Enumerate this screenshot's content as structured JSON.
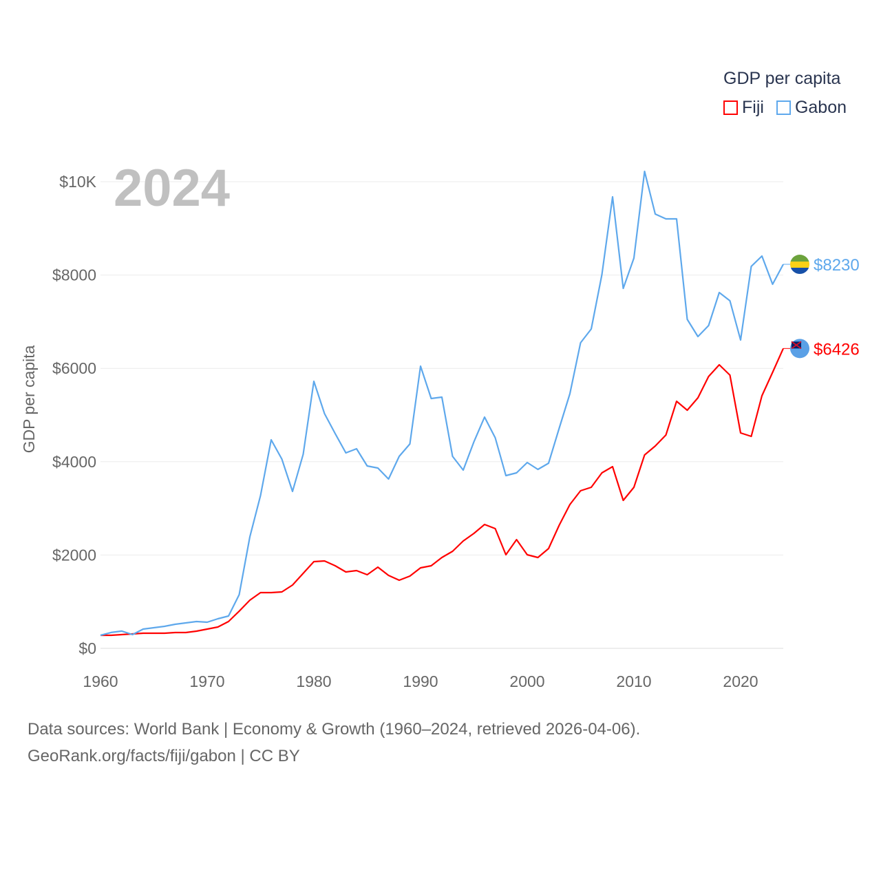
{
  "chart_data": {
    "type": "line",
    "title": "GDP per capita",
    "ylabel": "GDP per capita",
    "xlabel": "",
    "year_label": "2024",
    "x_start": 1960,
    "x_end": 2024,
    "xlim": [
      1960,
      2024
    ],
    "ylim": [
      0,
      10000
    ],
    "x_ticks": [
      1960,
      1970,
      1980,
      1990,
      2000,
      2010,
      2020
    ],
    "x_tick_labels": [
      "1960",
      "1970",
      "1980",
      "1990",
      "2000",
      "2010",
      "2020"
    ],
    "y_ticks": [
      0,
      2000,
      4000,
      6000,
      8000,
      10000
    ],
    "y_tick_labels": [
      "$0",
      "$2000",
      "$4000",
      "$6000",
      "$8000",
      "$10K"
    ],
    "grid": true,
    "legend_placement": "top-right",
    "series": [
      {
        "name": "Fiji",
        "color": "#ff0000",
        "end_label": "$6426",
        "values": [
          280,
          280,
          295,
          310,
          324,
          324,
          324,
          339,
          339,
          369,
          413,
          457,
          575,
          796,
          1032,
          1195,
          1195,
          1209,
          1357,
          1608,
          1858,
          1873,
          1770,
          1637,
          1667,
          1578,
          1740,
          1563,
          1460,
          1549,
          1726,
          1770,
          1947,
          2080,
          2301,
          2463,
          2655,
          2566,
          2006,
          2330,
          2006,
          1947,
          2139,
          2640,
          3083,
          3378,
          3451,
          3761,
          3894,
          3171,
          3451,
          4145,
          4336,
          4572,
          5295,
          5103,
          5369,
          5826,
          6077,
          5855,
          4617,
          4543,
          5413,
          5914,
          6426
        ]
      },
      {
        "name": "Gabon",
        "color": "#5ea8ec",
        "end_label": "$8230",
        "values": [
          280,
          340,
          370,
          295,
          413,
          442,
          472,
          516,
          546,
          575,
          560,
          634,
          693,
          1150,
          2390,
          3274,
          4469,
          4056,
          3363,
          4159,
          5723,
          5029,
          4602,
          4189,
          4277,
          3909,
          3864,
          3628,
          4115,
          4380,
          6047,
          5354,
          5383,
          4115,
          3820,
          4425,
          4956,
          4513,
          3702,
          3761,
          3982,
          3835,
          3967,
          4720,
          5457,
          6549,
          6844,
          8009,
          9676,
          7714,
          8363,
          10221,
          9307,
          9204,
          9204,
          7050,
          6681,
          6917,
          7625,
          7448,
          6608,
          8186,
          8407,
          7802,
          8230
        ]
      }
    ]
  },
  "legend": {
    "title": "GDP per capita",
    "items": [
      "Fiji",
      "Gabon"
    ]
  },
  "footer": {
    "line1": "Data sources: World Bank | Economy & Growth (1960–2024, retrieved 2026-04-06).",
    "line2": "GeoRank.org/facts/fiji/gabon | CC BY"
  }
}
